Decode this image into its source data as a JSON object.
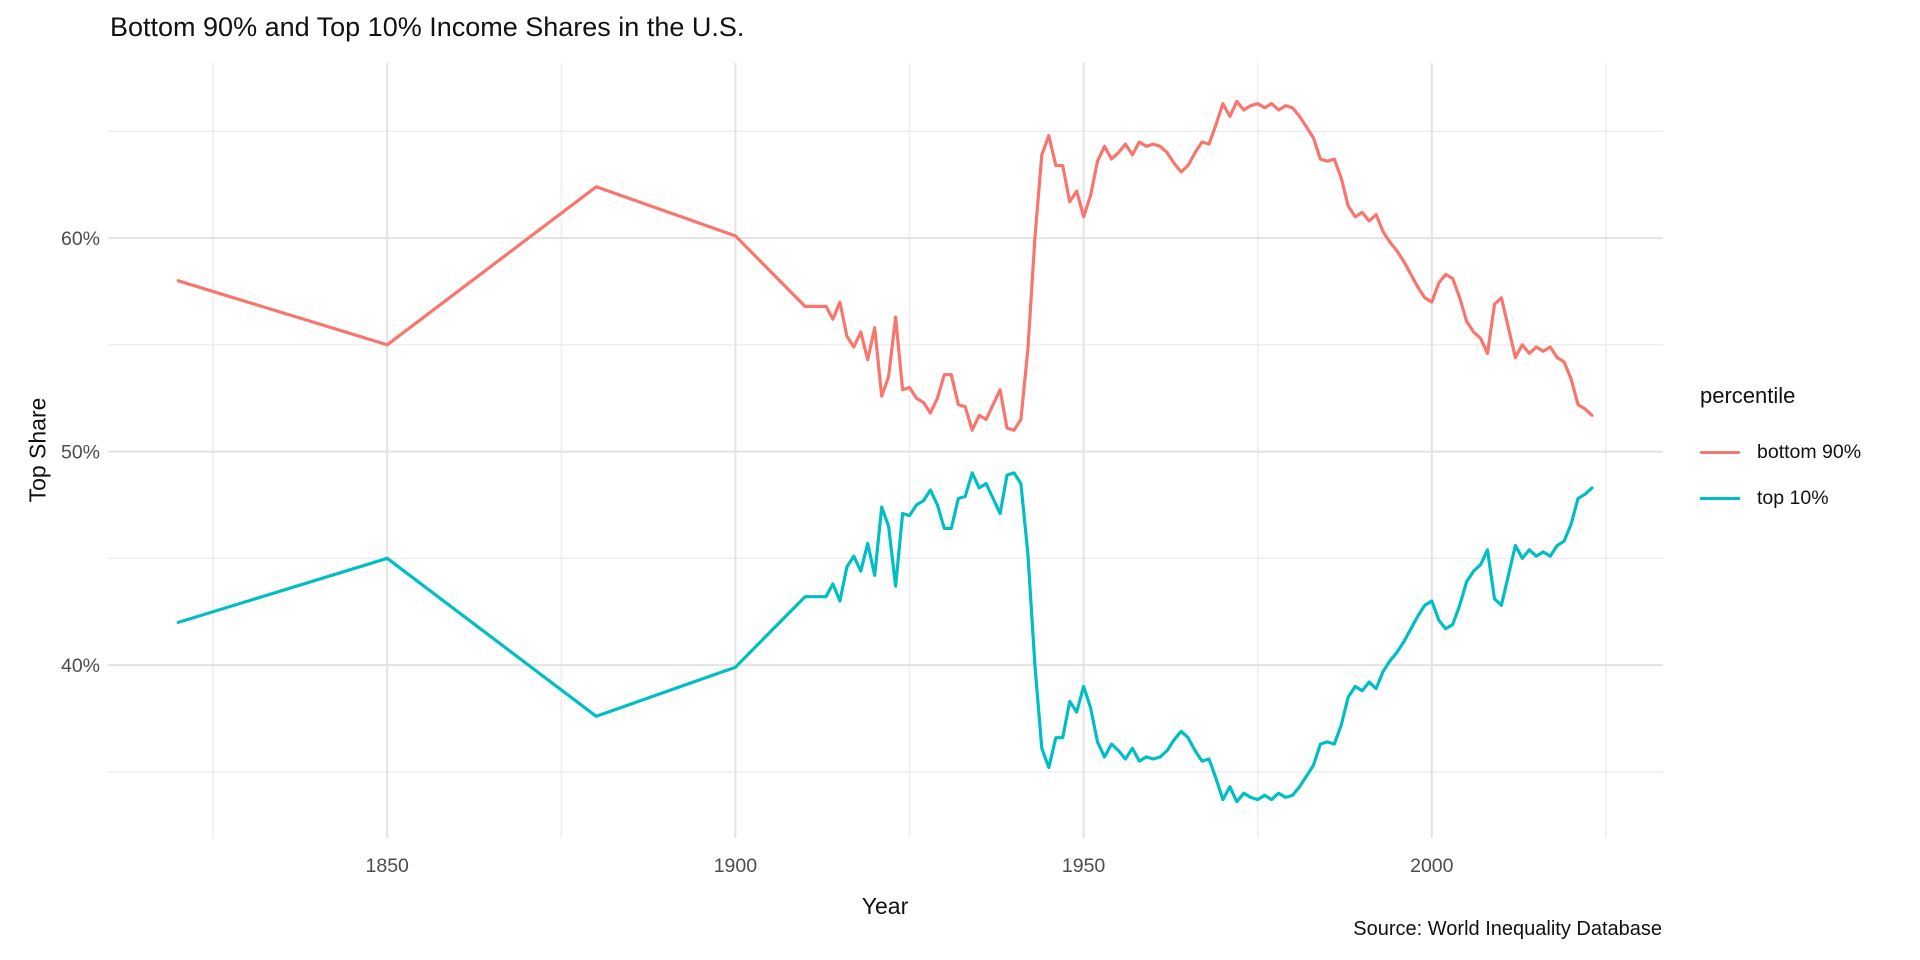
{
  "title": "Bottom 90% and Top 10% Income Shares in the U.S.",
  "caption": "Source: World Inequality Database",
  "colors": {
    "bottom90_line": "#F8766D",
    "top10_line": "#00BFC4",
    "grid_major": "#E3E3E3",
    "grid_minor": "#EDEDED",
    "axis_text": "#4d4d4d",
    "text": "#111111",
    "background": "#ffffff"
  },
  "chart_data": {
    "type": "line",
    "title": "Bottom 90% and Top 10% Income Shares in the U.S.",
    "xlabel": "Year",
    "ylabel": "Top Share",
    "grid": "on",
    "xlim": [
      1809.9,
      2033.2
    ],
    "ylim": [
      31.9,
      68.2
    ],
    "x_ticks": [
      {
        "value": 1850,
        "label": "1850"
      },
      {
        "value": 1900,
        "label": "1900"
      },
      {
        "value": 1950,
        "label": "1950"
      },
      {
        "value": 2000,
        "label": "2000"
      }
    ],
    "x_minor": [
      1825,
      1875,
      1925,
      1975,
      2025
    ],
    "y_ticks": [
      {
        "value": 40,
        "label": "40%"
      },
      {
        "value": 50,
        "label": "50%"
      },
      {
        "value": 60,
        "label": "60%"
      }
    ],
    "y_minor": [
      35,
      45,
      55,
      65
    ],
    "legend": {
      "title": "percentile",
      "position": "right",
      "entries": [
        "bottom 90%",
        "top 10%"
      ]
    },
    "series": [
      {
        "id": "bottom90",
        "name": "bottom 90%",
        "color": "#F8766D",
        "points": [
          [
            1820,
            58.0
          ],
          [
            1850,
            55.0
          ],
          [
            1880,
            62.4
          ],
          [
            1900,
            60.1
          ],
          [
            1910,
            56.8
          ],
          [
            1913,
            56.8
          ],
          [
            1914,
            56.2
          ],
          [
            1915,
            57.0
          ],
          [
            1916,
            55.4
          ],
          [
            1917,
            54.9
          ],
          [
            1918,
            55.6
          ],
          [
            1919,
            54.3
          ],
          [
            1920,
            55.8
          ],
          [
            1921,
            52.6
          ],
          [
            1922,
            53.5
          ],
          [
            1923,
            56.3
          ],
          [
            1924,
            52.9
          ],
          [
            1925,
            53.0
          ],
          [
            1926,
            52.5
          ],
          [
            1927,
            52.3
          ],
          [
            1928,
            51.8
          ],
          [
            1929,
            52.5
          ],
          [
            1930,
            53.6
          ],
          [
            1931,
            53.6
          ],
          [
            1932,
            52.2
          ],
          [
            1933,
            52.1
          ],
          [
            1934,
            51.0
          ],
          [
            1935,
            51.7
          ],
          [
            1936,
            51.5
          ],
          [
            1937,
            52.2
          ],
          [
            1938,
            52.9
          ],
          [
            1939,
            51.1
          ],
          [
            1940,
            51.0
          ],
          [
            1941,
            51.5
          ],
          [
            1942,
            54.8
          ],
          [
            1943,
            60.0
          ],
          [
            1944,
            63.9
          ],
          [
            1945,
            64.8
          ],
          [
            1946,
            63.4
          ],
          [
            1947,
            63.4
          ],
          [
            1948,
            61.7
          ],
          [
            1949,
            62.2
          ],
          [
            1950,
            61.0
          ],
          [
            1951,
            62.0
          ],
          [
            1952,
            63.6
          ],
          [
            1953,
            64.3
          ],
          [
            1954,
            63.7
          ],
          [
            1955,
            64.0
          ],
          [
            1956,
            64.4
          ],
          [
            1957,
            63.9
          ],
          [
            1958,
            64.5
          ],
          [
            1959,
            64.3
          ],
          [
            1960,
            64.4
          ],
          [
            1961,
            64.3
          ],
          [
            1962,
            64.0
          ],
          [
            1963,
            63.5
          ],
          [
            1964,
            63.1
          ],
          [
            1965,
            63.4
          ],
          [
            1966,
            64.0
          ],
          [
            1967,
            64.5
          ],
          [
            1968,
            64.4
          ],
          [
            1969,
            65.3
          ],
          [
            1970,
            66.3
          ],
          [
            1971,
            65.7
          ],
          [
            1972,
            66.4
          ],
          [
            1973,
            66.0
          ],
          [
            1974,
            66.2
          ],
          [
            1975,
            66.3
          ],
          [
            1976,
            66.1
          ],
          [
            1977,
            66.3
          ],
          [
            1978,
            66.0
          ],
          [
            1979,
            66.2
          ],
          [
            1980,
            66.1
          ],
          [
            1981,
            65.7
          ],
          [
            1982,
            65.2
          ],
          [
            1983,
            64.7
          ],
          [
            1984,
            63.7
          ],
          [
            1985,
            63.6
          ],
          [
            1986,
            63.7
          ],
          [
            1987,
            62.8
          ],
          [
            1988,
            61.5
          ],
          [
            1989,
            61.0
          ],
          [
            1990,
            61.2
          ],
          [
            1991,
            60.8
          ],
          [
            1992,
            61.1
          ],
          [
            1993,
            60.3
          ],
          [
            1994,
            59.8
          ],
          [
            1995,
            59.4
          ],
          [
            1996,
            58.9
          ],
          [
            1997,
            58.3
          ],
          [
            1998,
            57.7
          ],
          [
            1999,
            57.2
          ],
          [
            2000,
            57.0
          ],
          [
            2001,
            57.9
          ],
          [
            2002,
            58.3
          ],
          [
            2003,
            58.1
          ],
          [
            2004,
            57.2
          ],
          [
            2005,
            56.1
          ],
          [
            2006,
            55.6
          ],
          [
            2007,
            55.3
          ],
          [
            2008,
            54.6
          ],
          [
            2009,
            56.9
          ],
          [
            2010,
            57.2
          ],
          [
            2011,
            55.8
          ],
          [
            2012,
            54.4
          ],
          [
            2013,
            55.0
          ],
          [
            2014,
            54.6
          ],
          [
            2015,
            54.9
          ],
          [
            2016,
            54.7
          ],
          [
            2017,
            54.9
          ],
          [
            2018,
            54.4
          ],
          [
            2019,
            54.2
          ],
          [
            2020,
            53.4
          ],
          [
            2021,
            52.2
          ],
          [
            2022,
            52.0
          ],
          [
            2023,
            51.7
          ]
        ]
      },
      {
        "id": "top10",
        "name": "top 10%",
        "color": "#00BFC4",
        "points": [
          [
            1820,
            42.0
          ],
          [
            1850,
            45.0
          ],
          [
            1880,
            37.6
          ],
          [
            1900,
            39.9
          ],
          [
            1910,
            43.2
          ],
          [
            1913,
            43.2
          ],
          [
            1914,
            43.8
          ],
          [
            1915,
            43.0
          ],
          [
            1916,
            44.6
          ],
          [
            1917,
            45.1
          ],
          [
            1918,
            44.4
          ],
          [
            1919,
            45.7
          ],
          [
            1920,
            44.2
          ],
          [
            1921,
            47.4
          ],
          [
            1922,
            46.5
          ],
          [
            1923,
            43.7
          ],
          [
            1924,
            47.1
          ],
          [
            1925,
            47.0
          ],
          [
            1926,
            47.5
          ],
          [
            1927,
            47.7
          ],
          [
            1928,
            48.2
          ],
          [
            1929,
            47.5
          ],
          [
            1930,
            46.4
          ],
          [
            1931,
            46.4
          ],
          [
            1932,
            47.8
          ],
          [
            1933,
            47.9
          ],
          [
            1934,
            49.0
          ],
          [
            1935,
            48.3
          ],
          [
            1936,
            48.5
          ],
          [
            1937,
            47.8
          ],
          [
            1938,
            47.1
          ],
          [
            1939,
            48.9
          ],
          [
            1940,
            49.0
          ],
          [
            1941,
            48.5
          ],
          [
            1942,
            45.2
          ],
          [
            1943,
            40.0
          ],
          [
            1944,
            36.1
          ],
          [
            1945,
            35.2
          ],
          [
            1946,
            36.6
          ],
          [
            1947,
            36.6
          ],
          [
            1948,
            38.3
          ],
          [
            1949,
            37.8
          ],
          [
            1950,
            39.0
          ],
          [
            1951,
            38.0
          ],
          [
            1952,
            36.4
          ],
          [
            1953,
            35.7
          ],
          [
            1954,
            36.3
          ],
          [
            1955,
            36.0
          ],
          [
            1956,
            35.6
          ],
          [
            1957,
            36.1
          ],
          [
            1958,
            35.5
          ],
          [
            1959,
            35.7
          ],
          [
            1960,
            35.6
          ],
          [
            1961,
            35.7
          ],
          [
            1962,
            36.0
          ],
          [
            1963,
            36.5
          ],
          [
            1964,
            36.9
          ],
          [
            1965,
            36.6
          ],
          [
            1966,
            36.0
          ],
          [
            1967,
            35.5
          ],
          [
            1968,
            35.6
          ],
          [
            1969,
            34.7
          ],
          [
            1970,
            33.7
          ],
          [
            1971,
            34.3
          ],
          [
            1972,
            33.6
          ],
          [
            1973,
            34.0
          ],
          [
            1974,
            33.8
          ],
          [
            1975,
            33.7
          ],
          [
            1976,
            33.9
          ],
          [
            1977,
            33.7
          ],
          [
            1978,
            34.0
          ],
          [
            1979,
            33.8
          ],
          [
            1980,
            33.9
          ],
          [
            1981,
            34.3
          ],
          [
            1982,
            34.8
          ],
          [
            1983,
            35.3
          ],
          [
            1984,
            36.3
          ],
          [
            1985,
            36.4
          ],
          [
            1986,
            36.3
          ],
          [
            1987,
            37.2
          ],
          [
            1988,
            38.5
          ],
          [
            1989,
            39.0
          ],
          [
            1990,
            38.8
          ],
          [
            1991,
            39.2
          ],
          [
            1992,
            38.9
          ],
          [
            1993,
            39.7
          ],
          [
            1994,
            40.2
          ],
          [
            1995,
            40.6
          ],
          [
            1996,
            41.1
          ],
          [
            1997,
            41.7
          ],
          [
            1998,
            42.3
          ],
          [
            1999,
            42.8
          ],
          [
            2000,
            43.0
          ],
          [
            2001,
            42.1
          ],
          [
            2002,
            41.7
          ],
          [
            2003,
            41.9
          ],
          [
            2004,
            42.8
          ],
          [
            2005,
            43.9
          ],
          [
            2006,
            44.4
          ],
          [
            2007,
            44.7
          ],
          [
            2008,
            45.4
          ],
          [
            2009,
            43.1
          ],
          [
            2010,
            42.8
          ],
          [
            2011,
            44.2
          ],
          [
            2012,
            45.6
          ],
          [
            2013,
            45.0
          ],
          [
            2014,
            45.4
          ],
          [
            2015,
            45.1
          ],
          [
            2016,
            45.3
          ],
          [
            2017,
            45.1
          ],
          [
            2018,
            45.6
          ],
          [
            2019,
            45.8
          ],
          [
            2020,
            46.6
          ],
          [
            2021,
            47.8
          ],
          [
            2022,
            48.0
          ],
          [
            2023,
            48.3
          ]
        ]
      }
    ]
  }
}
